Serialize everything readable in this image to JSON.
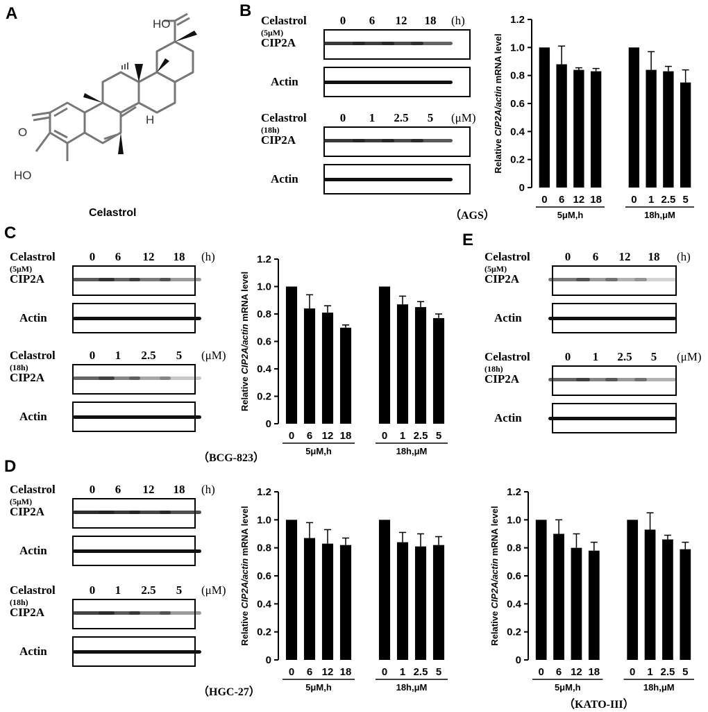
{
  "panels": {
    "A": "A",
    "B": "B",
    "C": "C",
    "D": "D",
    "E": "E"
  },
  "structure": {
    "name": "Celastrol",
    "atoms": {
      "oh": "HO",
      "o": "O",
      "ho": "HO",
      "h": "H"
    }
  },
  "blot": {
    "treatment": "Celastrol",
    "time_cond": "(5μM)",
    "dose_cond": "(18h)",
    "target": "CIP2A",
    "control": "Actin",
    "time_ticks": [
      "0",
      "6",
      "12",
      "18"
    ],
    "time_unit": "(h)",
    "dose_ticks": [
      "0",
      "1",
      "2.5",
      "5"
    ],
    "dose_unit": "(μM)"
  },
  "cell_lines": {
    "AGS": "（AGS）",
    "BCG": "（BCG-823）",
    "HGC": "（HGC-27）",
    "KATO": "（KATO-III）"
  },
  "chart_common": {
    "ylabel_pre": "Relative ",
    "ylabel_ital": "CIP2A/actin",
    "ylabel_post": " mRNA level",
    "group_labels": [
      "5μM,h",
      "18h,μM"
    ]
  },
  "chart_data": [
    {
      "type": "bar",
      "cell_line": "AGS",
      "categories": [
        "0",
        "6",
        "12",
        "18",
        "0",
        "1",
        "2.5",
        "5"
      ],
      "values": [
        1.0,
        0.88,
        0.84,
        0.83,
        1.0,
        0.84,
        0.83,
        0.75
      ],
      "errors": [
        0,
        0.13,
        0.015,
        0.02,
        0,
        0.13,
        0.035,
        0.09
      ],
      "ylim": [
        0,
        1.2
      ],
      "yticks": [
        "0",
        "0.2",
        "0.4",
        "0.6",
        "0.8",
        "1.0",
        "1.2"
      ]
    },
    {
      "type": "bar",
      "cell_line": "BCG-823",
      "categories": [
        "0",
        "6",
        "12",
        "18",
        "0",
        "1",
        "2.5",
        "5"
      ],
      "values": [
        1.0,
        0.84,
        0.81,
        0.7,
        1.0,
        0.87,
        0.85,
        0.77
      ],
      "errors": [
        0,
        0.1,
        0.05,
        0.02,
        0,
        0.06,
        0.04,
        0.03
      ],
      "ylim": [
        0,
        1.2
      ],
      "yticks": [
        "0",
        "0.2",
        "0.4",
        "0.6",
        "0.8",
        "1.0",
        "1.2"
      ]
    },
    {
      "type": "bar",
      "cell_line": "HGC-27",
      "categories": [
        "0",
        "6",
        "12",
        "18",
        "0",
        "1",
        "2.5",
        "5"
      ],
      "values": [
        1.0,
        0.87,
        0.83,
        0.82,
        1.0,
        0.84,
        0.81,
        0.82
      ],
      "errors": [
        0,
        0.11,
        0.1,
        0.05,
        0,
        0.07,
        0.09,
        0.06
      ],
      "ylim": [
        0,
        1.2
      ],
      "yticks": [
        "0",
        "0.2",
        "0.4",
        "0.6",
        "0.8",
        "1.0",
        "1.2"
      ]
    },
    {
      "type": "bar",
      "cell_line": "KATO-III",
      "categories": [
        "0",
        "6",
        "12",
        "18",
        "0",
        "1",
        "2.5",
        "5"
      ],
      "values": [
        1.0,
        0.9,
        0.8,
        0.78,
        1.0,
        0.93,
        0.86,
        0.79
      ],
      "errors": [
        0,
        0.1,
        0.1,
        0.06,
        0,
        0.12,
        0.03,
        0.05
      ],
      "ylim": [
        0,
        1.2
      ],
      "yticks": [
        "0",
        "0.2",
        "0.4",
        "0.6",
        "0.8",
        "1.0",
        "1.2"
      ]
    }
  ],
  "band_colors": {
    "cip2a": "#222222",
    "actin": "#111111"
  },
  "blot_intensity": {
    "B_time": [
      0.9,
      0.88,
      0.82,
      0.7
    ],
    "B_dose": [
      0.9,
      0.88,
      0.82,
      0.75
    ],
    "C_time": [
      0.75,
      0.7,
      0.6,
      0.45
    ],
    "C_dose": [
      0.7,
      0.55,
      0.4,
      0.25
    ],
    "D_time": [
      0.95,
      0.9,
      0.85,
      0.8
    ],
    "D_dose": [
      0.85,
      0.75,
      0.6,
      0.45
    ],
    "E_time": [
      0.6,
      0.45,
      0.35,
      0.2
    ],
    "E_dose": [
      0.7,
      0.55,
      0.45,
      0.35
    ]
  }
}
